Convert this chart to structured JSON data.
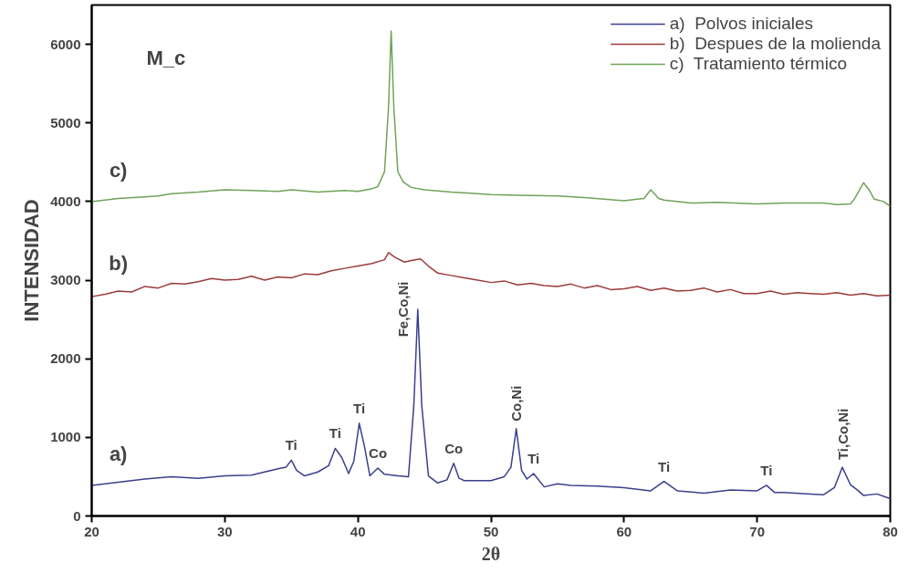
{
  "chart_data": {
    "type": "line",
    "title": "M_c",
    "xlabel": "2θ",
    "ylabel": "INTENSIDAD",
    "xlim": [
      20,
      80
    ],
    "ylim": [
      0,
      6500
    ],
    "xticks": [
      20,
      30,
      40,
      50,
      60,
      70,
      80
    ],
    "yticks": [
      0,
      1000,
      2000,
      3000,
      4000,
      5000,
      6000
    ],
    "grid": false,
    "legend": "top right",
    "line_style": "solid",
    "marker": "none",
    "series": [
      {
        "name": "a)  Polvos iniciales",
        "color": "#3b3f8c",
        "x": [
          20,
          22,
          24,
          26,
          28,
          30,
          32,
          34,
          34.6,
          35,
          35.4,
          36,
          37,
          37.8,
          38.3,
          38.8,
          39.3,
          39.7,
          40.1,
          40.5,
          40.9,
          41.5,
          42,
          43,
          43.8,
          44.2,
          44.5,
          44.8,
          45.3,
          46,
          46.7,
          47.2,
          47.6,
          48,
          49,
          50,
          51,
          51.5,
          51.9,
          52.3,
          52.7,
          53.2,
          54,
          55,
          56,
          58,
          60,
          62,
          63,
          64,
          66,
          68,
          70,
          70.7,
          71.3,
          72,
          74,
          75,
          75.8,
          76.4,
          77,
          77.6,
          78,
          79,
          80
        ],
        "values": [
          390,
          430,
          470,
          500,
          480,
          510,
          520,
          600,
          620,
          710,
          580,
          510,
          560,
          640,
          860,
          740,
          540,
          700,
          1180,
          880,
          510,
          610,
          530,
          510,
          500,
          1400,
          2630,
          1400,
          510,
          420,
          460,
          670,
          480,
          450,
          450,
          450,
          500,
          620,
          1110,
          580,
          470,
          540,
          370,
          410,
          390,
          380,
          360,
          320,
          440,
          320,
          290,
          330,
          320,
          390,
          300,
          300,
          280,
          270,
          360,
          620,
          400,
          320,
          260,
          280,
          220
        ]
      },
      {
        "name": "b)  Despues de la molienda",
        "color": "#9c3b3b",
        "x": [
          20,
          21,
          22,
          23,
          24,
          25,
          26,
          27,
          28,
          29,
          30,
          31,
          32,
          33,
          34,
          35,
          36,
          37,
          38,
          39,
          40,
          41,
          42,
          42.3,
          42.8,
          43.5,
          44,
          44.7,
          45.3,
          46,
          47,
          48,
          49,
          50,
          51,
          52,
          53,
          54,
          55,
          56,
          57,
          58,
          59,
          60,
          61,
          62,
          63,
          64,
          65,
          66,
          67,
          68,
          69,
          70,
          71,
          72,
          73,
          74,
          75,
          76,
          77,
          78,
          79,
          80
        ],
        "values": [
          2790,
          2820,
          2860,
          2850,
          2920,
          2900,
          2960,
          2950,
          2980,
          3020,
          3000,
          3010,
          3050,
          3000,
          3040,
          3030,
          3080,
          3070,
          3120,
          3150,
          3180,
          3210,
          3260,
          3350,
          3290,
          3230,
          3250,
          3270,
          3180,
          3090,
          3060,
          3030,
          3000,
          2970,
          2990,
          2940,
          2960,
          2930,
          2920,
          2950,
          2900,
          2930,
          2880,
          2890,
          2920,
          2870,
          2900,
          2860,
          2870,
          2900,
          2850,
          2880,
          2830,
          2830,
          2860,
          2820,
          2840,
          2830,
          2820,
          2840,
          2810,
          2830,
          2800,
          2810
        ]
      },
      {
        "name": "c)  Tratamiento térmico",
        "color": "#6fa35a",
        "x": [
          20,
          22,
          24,
          25,
          26,
          28,
          30,
          32,
          34,
          35,
          37,
          39,
          40,
          41,
          41.5,
          42,
          42.3,
          42.5,
          42.7,
          43,
          43.4,
          44,
          45,
          47,
          50,
          52,
          55,
          57,
          60,
          61,
          61.5,
          62,
          62.6,
          63,
          65,
          67,
          70,
          72,
          75,
          76,
          77,
          77.3,
          77.7,
          78,
          78.4,
          78.8,
          79.5,
          80
        ],
        "values": [
          4000,
          4040,
          4060,
          4070,
          4100,
          4120,
          4150,
          4140,
          4130,
          4150,
          4120,
          4140,
          4130,
          4160,
          4190,
          4380,
          5200,
          6170,
          5200,
          4380,
          4250,
          4180,
          4150,
          4120,
          4090,
          4080,
          4070,
          4050,
          4010,
          4030,
          4040,
          4150,
          4040,
          4020,
          3980,
          3990,
          3970,
          3980,
          3980,
          3960,
          3970,
          4030,
          4150,
          4240,
          4150,
          4030,
          4000,
          3940
        ]
      }
    ],
    "annotations": [
      {
        "text": "a)",
        "x": 22,
        "y": 430
      },
      {
        "text": "b)",
        "x": 22,
        "y": 2860
      },
      {
        "text": "c)",
        "x": 22,
        "y": 4040
      },
      {
        "text": "Ti",
        "x": 35,
        "y": 710
      },
      {
        "text": "Ti",
        "x": 38.3,
        "y": 860
      },
      {
        "text": "Ti",
        "x": 40.1,
        "y": 1180
      },
      {
        "text": "Co",
        "x": 41.5,
        "y": 610
      },
      {
        "text": "Fe,Co,Ni",
        "x": 44.5,
        "y": 2630
      },
      {
        "text": "Co",
        "x": 47.2,
        "y": 670
      },
      {
        "text": "Co,Ni",
        "x": 51.9,
        "y": 1110
      },
      {
        "text": "Ti",
        "x": 53.2,
        "y": 540
      },
      {
        "text": "Ti",
        "x": 63,
        "y": 440
      },
      {
        "text": "Ti",
        "x": 70.7,
        "y": 390
      },
      {
        "text": "Ti,Co,Ni",
        "x": 76.4,
        "y": 620
      }
    ]
  }
}
